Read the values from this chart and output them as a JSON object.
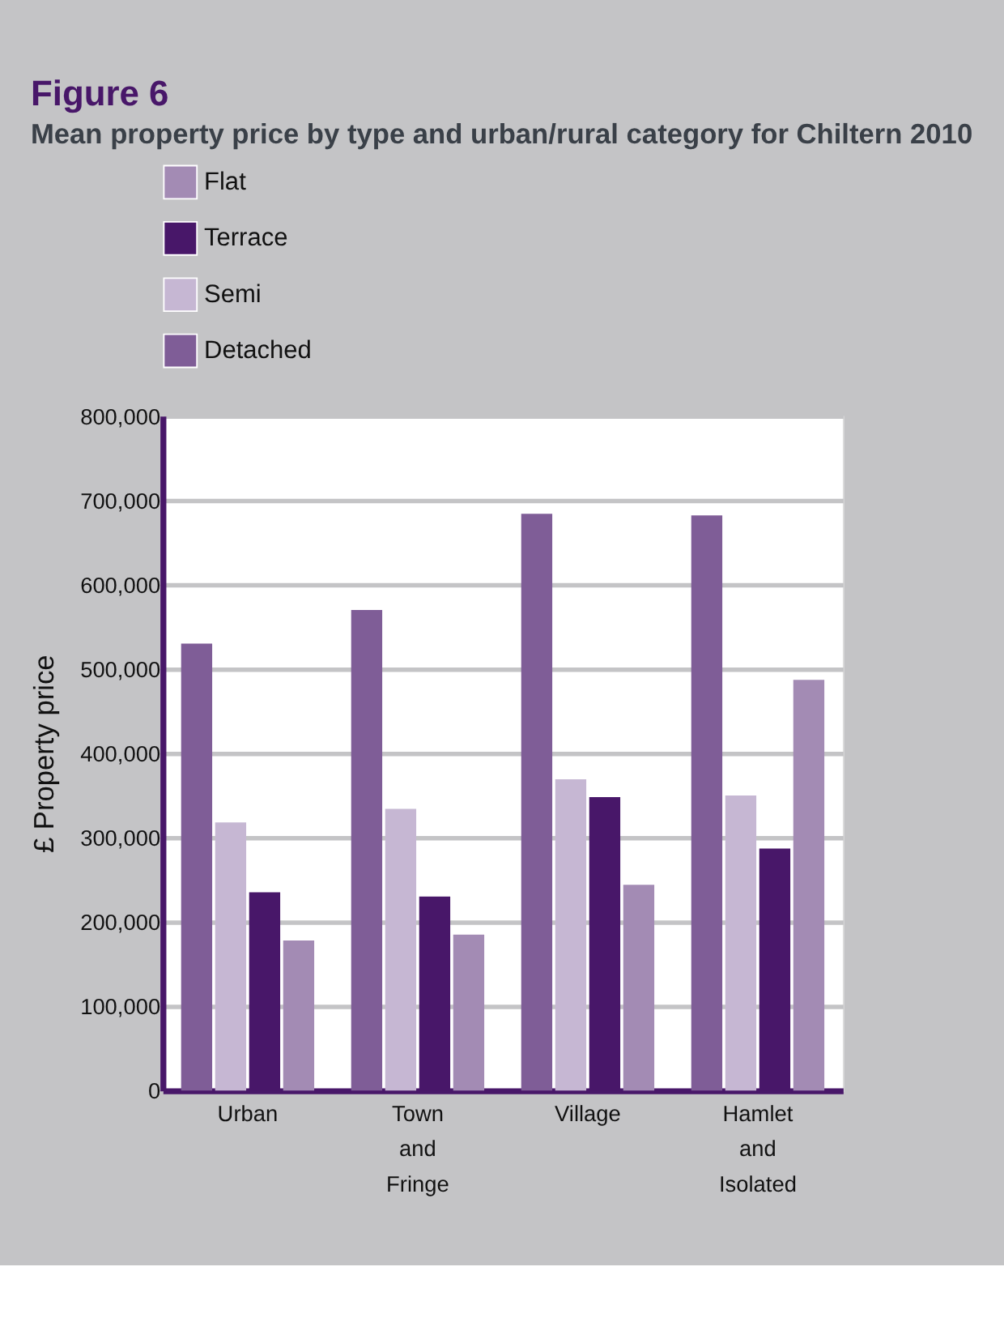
{
  "chart_data": {
    "type": "bar",
    "title": "Figure 6",
    "subtitle": "Mean property price by type and urban/rural category for Chiltern 2010",
    "ylabel": "£ Property price",
    "categories": [
      "Urban",
      "Town and Fringe",
      "Village",
      "Hamlet and Isolated"
    ],
    "series": [
      {
        "name": "Flat",
        "color": "#a38bb4",
        "values": [
          178000,
          185000,
          244000,
          487000
        ]
      },
      {
        "name": "Terrace",
        "color": "#481769",
        "values": [
          235000,
          230000,
          348000,
          287000
        ]
      },
      {
        "name": "Semi",
        "color": "#c6b7d3",
        "values": [
          318000,
          334000,
          369000,
          350000
        ]
      },
      {
        "name": "Detached",
        "color": "#7f5d97",
        "values": [
          530000,
          570000,
          684000,
          682000
        ]
      }
    ],
    "ylim": [
      0,
      800000
    ],
    "yticks": [
      0,
      {
        "value": 100000,
        "label": "100,000"
      },
      {
        "value": 200000,
        "label": "200,000"
      },
      {
        "value": 300000,
        "label": "300,000"
      },
      {
        "value": 400000,
        "label": "400,000"
      },
      {
        "value": 500000,
        "label": "500,000"
      },
      {
        "value": 600000,
        "label": "600,000"
      },
      {
        "value": 700000,
        "label": "700,000"
      },
      {
        "value": 800000,
        "label": "800,000"
      }
    ],
    "grid": "y",
    "legend": "top left"
  }
}
